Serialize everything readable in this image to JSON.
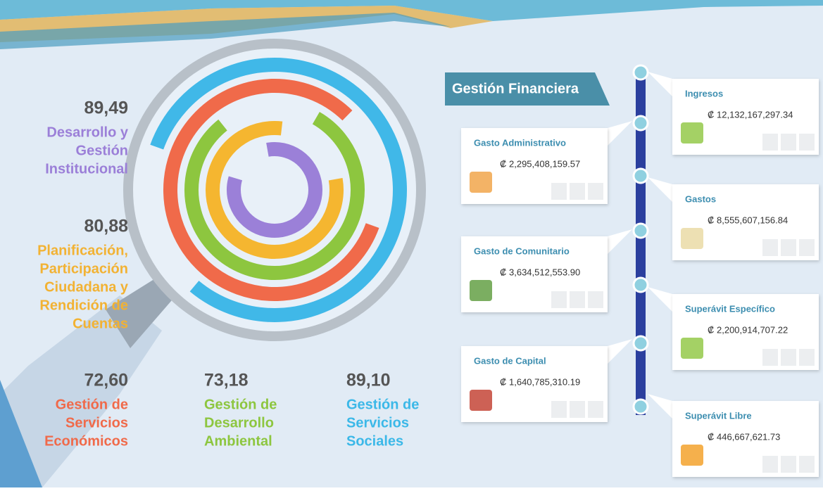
{
  "scores": [
    {
      "value": "89,49",
      "label": [
        "Desarrollo y",
        "Gestión",
        "Institucional"
      ]
    },
    {
      "value": "80,88",
      "label": [
        "Planificación,",
        "Participación",
        "Ciudadana y",
        "Rendición de",
        "Cuentas"
      ]
    },
    {
      "value": "72,60",
      "label": [
        "Gestión de",
        "Servicios",
        "Económicos"
      ]
    },
    {
      "value": "73,18",
      "label": [
        "Gestión de",
        "Desarrollo",
        "Ambiental"
      ]
    },
    {
      "value": "89,10",
      "label": [
        "Gestión de",
        "Servicios",
        "Sociales"
      ]
    }
  ],
  "finance": {
    "title": "Gestión Financiera",
    "items": [
      {
        "label": "Ingresos",
        "amount": "₡ 12,132,167,297.34"
      },
      {
        "label": "Gasto Administrativo",
        "amount": "₡ 2,295,408,159.57"
      },
      {
        "label": "Gastos",
        "amount": "₡ 8,555,607,156.84"
      },
      {
        "label": "Gasto de Comunitario",
        "amount": "₡ 3,634,512,553.90"
      },
      {
        "label": "Superávit Específico",
        "amount": "₡ 2,200,914,707.22"
      },
      {
        "label": "Gasto de Capital",
        "amount": "₡ 1,640,785,310.19"
      },
      {
        "label": "Superávit Libre",
        "amount": "₡ 446,667,621.73"
      }
    ]
  }
}
